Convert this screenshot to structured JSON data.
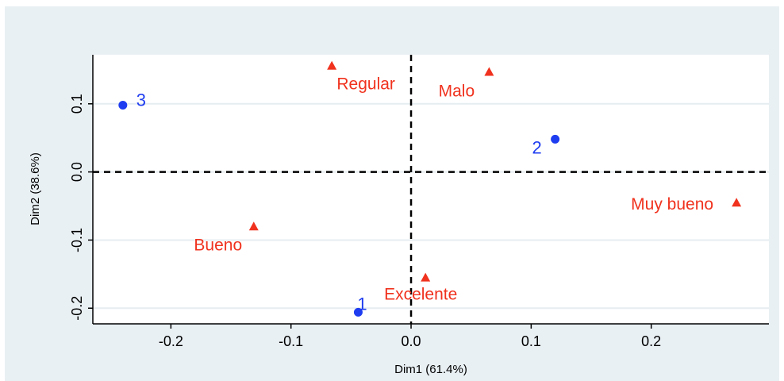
{
  "chart_data": {
    "type": "scatter",
    "xlabel": "Dim1 (61.4%)",
    "ylabel": "Dim2 (38.6%)",
    "xlim": [
      -0.265,
      0.298
    ],
    "ylim": [
      -0.223,
      0.172
    ],
    "xticks": [
      -0.2,
      -0.1,
      0.0,
      0.1,
      0.2
    ],
    "xtick_labels": [
      "-0.2",
      "-0.1",
      "0.0",
      "0.1",
      "0.2"
    ],
    "yticks": [
      -0.2,
      -0.1,
      0.0,
      0.1
    ],
    "ytick_labels": [
      "-0.2",
      "-0.1",
      "0.0",
      "0.1"
    ],
    "grid": true,
    "reference_lines": {
      "x": 0,
      "y": 0,
      "style": "dashed"
    },
    "colors": {
      "row": "#1f3df0",
      "col": "#f0321e",
      "panel_bg": "#ffffff",
      "outer_bg": "#e9f0f4",
      "grid": "#e6edf1"
    },
    "series": [
      {
        "group": "row",
        "marker": "circle",
        "points": [
          {
            "label": "1",
            "x": -0.044,
            "y": -0.206
          },
          {
            "label": "2",
            "x": 0.12,
            "y": 0.048
          },
          {
            "label": "3",
            "x": -0.24,
            "y": 0.098
          }
        ]
      },
      {
        "group": "col",
        "marker": "triangle",
        "points": [
          {
            "label": "Regular",
            "x": -0.066,
            "y": 0.156
          },
          {
            "label": "Malo",
            "x": 0.065,
            "y": 0.147
          },
          {
            "label": "Muy bueno",
            "x": 0.271,
            "y": -0.045
          },
          {
            "label": "Bueno",
            "x": -0.131,
            "y": -0.08
          },
          {
            "label": "Excelente",
            "x": 0.012,
            "y": -0.155
          }
        ]
      }
    ]
  }
}
